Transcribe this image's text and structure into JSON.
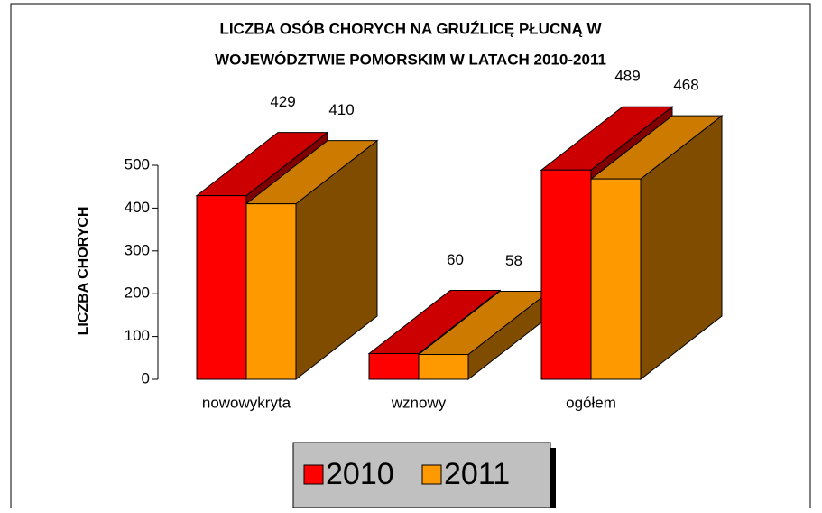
{
  "chart_data": {
    "type": "bar3d",
    "title": [
      "LICZBA OSÓB CHORYCH NA GRUŹLICĘ PŁUCNĄ W",
      "WOJEWÓDZTWIE POMORSKIM W LATACH 2010-2011"
    ],
    "y_label": "LICZBA CHORYCH",
    "categories": [
      "nowowykryta",
      "wznowy",
      "ogółem"
    ],
    "series": [
      {
        "name": "2010",
        "color": "#ff0000",
        "values": [
          429,
          60,
          489
        ]
      },
      {
        "name": "2011",
        "color": "#ff9900",
        "values": [
          410,
          58,
          468
        ]
      }
    ],
    "ylim": [
      0,
      500
    ],
    "yticks": [
      0,
      100,
      200,
      300,
      400,
      500
    ]
  }
}
